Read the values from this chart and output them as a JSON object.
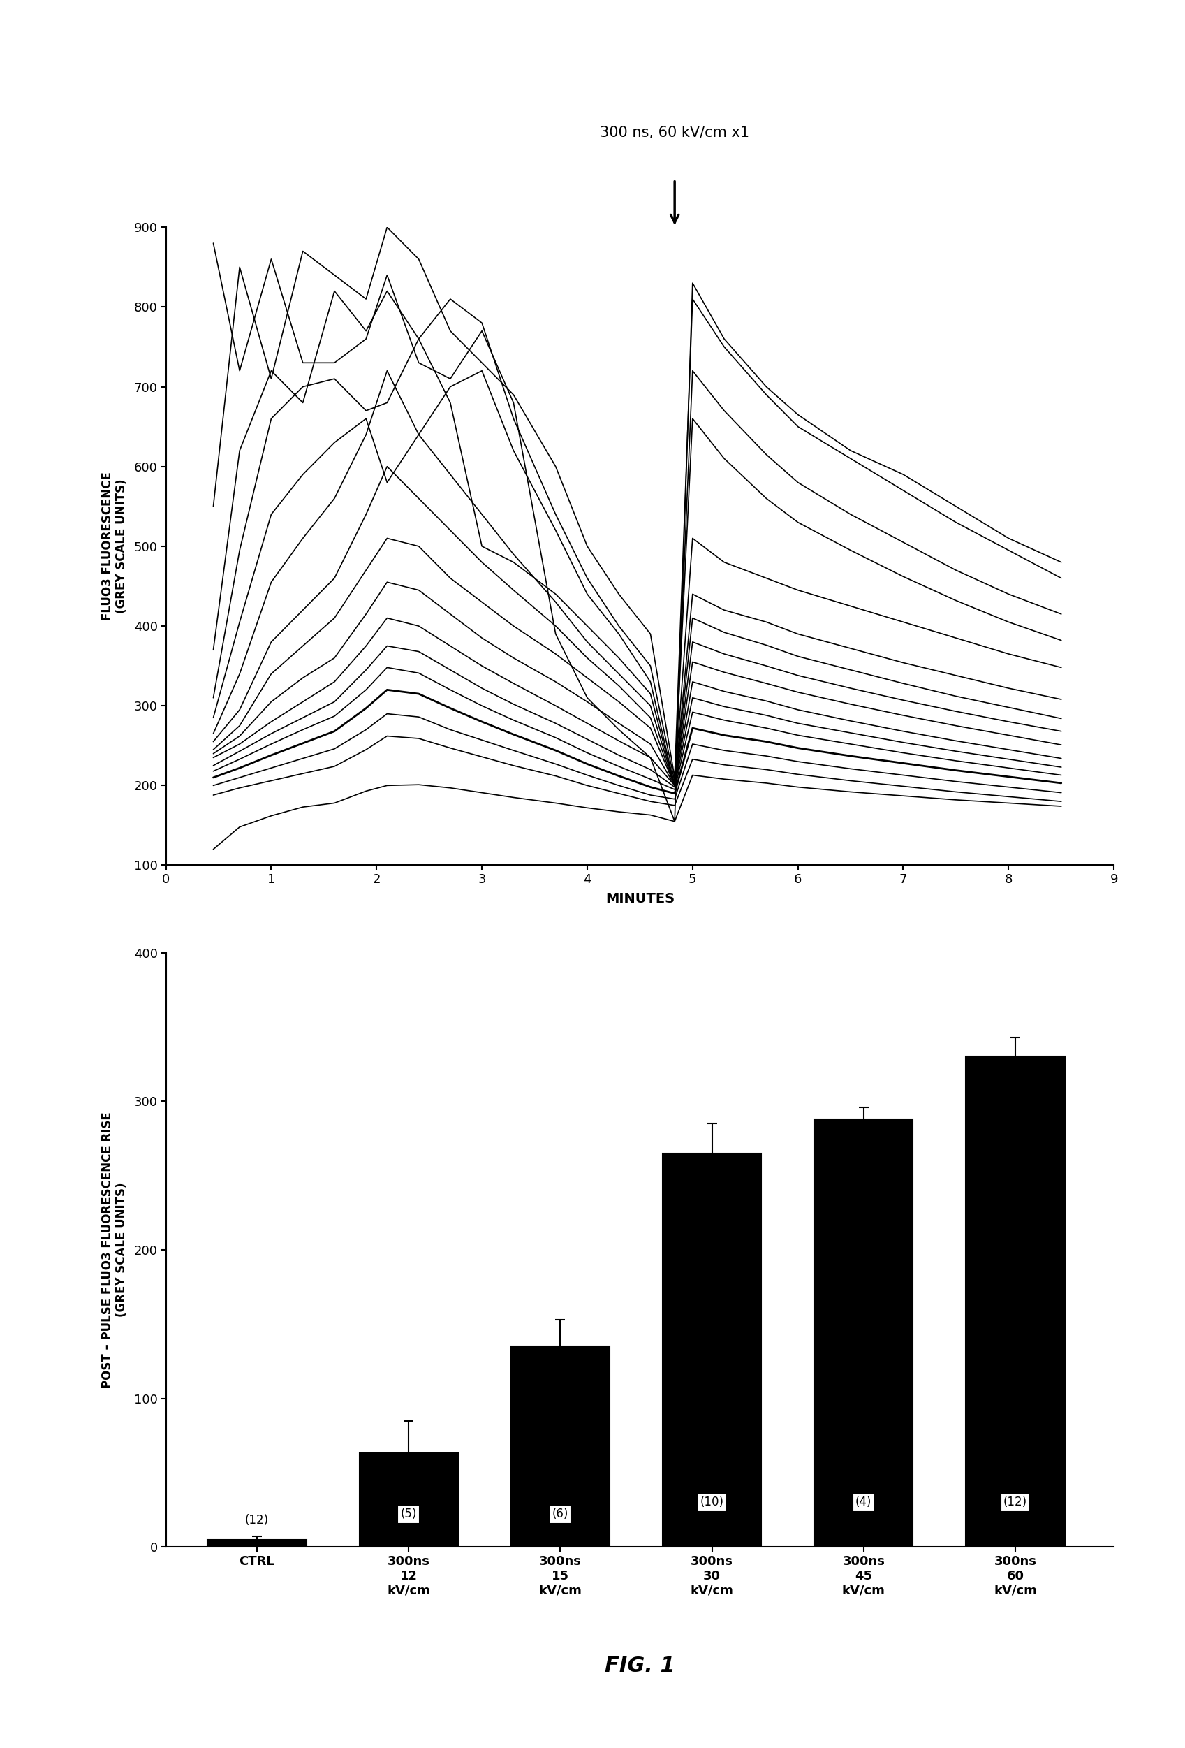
{
  "top_panel": {
    "title": "300 ns, 60 kV/cm x1",
    "xlabel": "MINUTES",
    "ylabel": "FLUO3 FLUORESCENCE\n(GREY SCALE UNITS)",
    "xlim": [
      0,
      9
    ],
    "ylim": [
      100,
      900
    ],
    "yticks": [
      100,
      200,
      300,
      400,
      500,
      600,
      700,
      800,
      900
    ],
    "xticks": [
      0,
      1,
      2,
      3,
      4,
      5,
      6,
      7,
      8,
      9
    ],
    "pulse_time": 4.83,
    "lines": [
      {
        "x": [
          0.45,
          0.7,
          1.0,
          1.3,
          1.6,
          1.9,
          2.1,
          2.4,
          2.7,
          3.0,
          3.3,
          3.7,
          4.0,
          4.3,
          4.6,
          4.83,
          5.0,
          5.3,
          5.7,
          6.0,
          6.5,
          7.0,
          7.5,
          8.0,
          8.5
        ],
        "y": [
          880,
          720,
          860,
          730,
          730,
          760,
          840,
          730,
          710,
          770,
          680,
          390,
          310,
          270,
          235,
          155,
          830,
          760,
          700,
          665,
          620,
          590,
          550,
          510,
          480
        ],
        "lw": 1.2
      },
      {
        "x": [
          0.45,
          0.7,
          1.0,
          1.3,
          1.6,
          1.9,
          2.1,
          2.4,
          2.7,
          3.0,
          3.3,
          3.7,
          4.0,
          4.3,
          4.6,
          4.83,
          5.0,
          5.3,
          5.7,
          6.0,
          6.5,
          7.0,
          7.5,
          8.0,
          8.5
        ],
        "y": [
          550,
          850,
          710,
          870,
          840,
          810,
          900,
          860,
          770,
          730,
          690,
          600,
          500,
          440,
          390,
          210,
          810,
          750,
          690,
          650,
          610,
          570,
          530,
          495,
          460
        ],
        "lw": 1.2
      },
      {
        "x": [
          0.45,
          0.7,
          1.0,
          1.3,
          1.6,
          1.9,
          2.1,
          2.4,
          2.7,
          3.0,
          3.3,
          3.7,
          4.0,
          4.3,
          4.6,
          4.83,
          5.0,
          5.3,
          5.7,
          6.0,
          6.5,
          7.0,
          7.5,
          8.0,
          8.5
        ],
        "y": [
          370,
          620,
          720,
          680,
          820,
          770,
          820,
          760,
          680,
          500,
          480,
          440,
          400,
          360,
          315,
          200,
          720,
          670,
          615,
          580,
          540,
          505,
          470,
          440,
          415
        ],
        "lw": 1.2
      },
      {
        "x": [
          0.45,
          0.7,
          1.0,
          1.3,
          1.6,
          1.9,
          2.1,
          2.4,
          2.7,
          3.0,
          3.3,
          3.7,
          4.0,
          4.3,
          4.6,
          4.83,
          5.0,
          5.3,
          5.7,
          6.0,
          6.5,
          7.0,
          7.5,
          8.0,
          8.5
        ],
        "y": [
          310,
          495,
          660,
          700,
          710,
          670,
          680,
          760,
          810,
          780,
          660,
          540,
          460,
          400,
          350,
          205,
          660,
          610,
          560,
          530,
          495,
          462,
          432,
          405,
          382
        ],
        "lw": 1.2
      },
      {
        "x": [
          0.45,
          0.7,
          1.0,
          1.3,
          1.6,
          1.9,
          2.1,
          2.4,
          2.7,
          3.0,
          3.3,
          3.7,
          4.0,
          4.3,
          4.6,
          4.83,
          5.0,
          5.3,
          5.7,
          6.0,
          6.5,
          7.0,
          7.5,
          8.0,
          8.5
        ],
        "y": [
          285,
          405,
          540,
          590,
          630,
          660,
          580,
          640,
          700,
          720,
          620,
          520,
          440,
          390,
          330,
          200,
          510,
          480,
          460,
          445,
          425,
          405,
          385,
          365,
          348
        ],
        "lw": 1.2
      },
      {
        "x": [
          0.45,
          0.7,
          1.0,
          1.3,
          1.6,
          1.9,
          2.1,
          2.4,
          2.7,
          3.0,
          3.3,
          3.7,
          4.0,
          4.3,
          4.6,
          4.83,
          5.0,
          5.3,
          5.7,
          6.0,
          6.5,
          7.0,
          7.5,
          8.0,
          8.5
        ],
        "y": [
          265,
          340,
          455,
          510,
          560,
          640,
          720,
          640,
          590,
          540,
          490,
          430,
          380,
          340,
          300,
          200,
          440,
          420,
          405,
          390,
          372,
          354,
          338,
          322,
          308
        ],
        "lw": 1.2
      },
      {
        "x": [
          0.45,
          0.7,
          1.0,
          1.3,
          1.6,
          1.9,
          2.1,
          2.4,
          2.7,
          3.0,
          3.3,
          3.7,
          4.0,
          4.3,
          4.6,
          4.83,
          5.0,
          5.3,
          5.7,
          6.0,
          6.5,
          7.0,
          7.5,
          8.0,
          8.5
        ],
        "y": [
          255,
          295,
          380,
          420,
          460,
          540,
          600,
          560,
          520,
          480,
          445,
          400,
          360,
          325,
          285,
          200,
          410,
          392,
          376,
          362,
          345,
          328,
          312,
          298,
          284
        ],
        "lw": 1.2
      },
      {
        "x": [
          0.45,
          0.7,
          1.0,
          1.3,
          1.6,
          1.9,
          2.1,
          2.4,
          2.7,
          3.0,
          3.3,
          3.7,
          4.0,
          4.3,
          4.6,
          4.83,
          5.0,
          5.3,
          5.7,
          6.0,
          6.5,
          7.0,
          7.5,
          8.0,
          8.5
        ],
        "y": [
          245,
          275,
          340,
          375,
          410,
          470,
          510,
          500,
          460,
          430,
          400,
          365,
          335,
          305,
          272,
          200,
          380,
          365,
          350,
          338,
          322,
          307,
          293,
          280,
          268
        ],
        "lw": 1.2
      },
      {
        "x": [
          0.45,
          0.7,
          1.0,
          1.3,
          1.6,
          1.9,
          2.1,
          2.4,
          2.7,
          3.0,
          3.3,
          3.7,
          4.0,
          4.3,
          4.6,
          4.83,
          5.0,
          5.3,
          5.7,
          6.0,
          6.5,
          7.0,
          7.5,
          8.0,
          8.5
        ],
        "y": [
          240,
          262,
          305,
          335,
          360,
          415,
          455,
          445,
          415,
          385,
          360,
          330,
          305,
          278,
          252,
          200,
          355,
          342,
          328,
          317,
          302,
          288,
          275,
          263,
          251
        ],
        "lw": 1.2
      },
      {
        "x": [
          0.45,
          0.7,
          1.0,
          1.3,
          1.6,
          1.9,
          2.1,
          2.4,
          2.7,
          3.0,
          3.3,
          3.7,
          4.0,
          4.3,
          4.6,
          4.83,
          5.0,
          5.3,
          5.7,
          6.0,
          6.5,
          7.0,
          7.5,
          8.0,
          8.5
        ],
        "y": [
          235,
          252,
          280,
          305,
          330,
          375,
          410,
          400,
          375,
          350,
          328,
          300,
          278,
          256,
          235,
          200,
          330,
          318,
          306,
          295,
          281,
          268,
          256,
          245,
          234
        ],
        "lw": 1.2
      },
      {
        "x": [
          0.45,
          0.7,
          1.0,
          1.3,
          1.6,
          1.9,
          2.1,
          2.4,
          2.7,
          3.0,
          3.3,
          3.7,
          4.0,
          4.3,
          4.6,
          4.83,
          5.0,
          5.3,
          5.7,
          6.0,
          6.5,
          7.0,
          7.5,
          8.0,
          8.5
        ],
        "y": [
          225,
          243,
          265,
          285,
          305,
          345,
          375,
          368,
          345,
          322,
          302,
          278,
          258,
          238,
          220,
          198,
          310,
          299,
          288,
          278,
          266,
          254,
          243,
          233,
          223
        ],
        "lw": 1.2
      },
      {
        "x": [
          0.45,
          0.7,
          1.0,
          1.3,
          1.6,
          1.9,
          2.1,
          2.4,
          2.7,
          3.0,
          3.3,
          3.7,
          4.0,
          4.3,
          4.6,
          4.83,
          5.0,
          5.3,
          5.7,
          6.0,
          6.5,
          7.0,
          7.5,
          8.0,
          8.5
        ],
        "y": [
          218,
          233,
          252,
          270,
          287,
          320,
          348,
          341,
          320,
          300,
          282,
          260,
          241,
          224,
          208,
          195,
          292,
          282,
          272,
          263,
          252,
          241,
          231,
          222,
          213
        ],
        "lw": 1.2
      },
      {
        "x": [
          0.45,
          0.7,
          1.0,
          1.3,
          1.6,
          1.9,
          2.1,
          2.4,
          2.7,
          3.0,
          3.3,
          3.7,
          4.0,
          4.3,
          4.6,
          4.83,
          5.0,
          5.3,
          5.7,
          6.0,
          6.5,
          7.0,
          7.5,
          8.0,
          8.5
        ],
        "y": [
          210,
          222,
          238,
          253,
          268,
          297,
          320,
          315,
          297,
          280,
          264,
          244,
          227,
          212,
          198,
          190,
          272,
          263,
          255,
          247,
          237,
          228,
          219,
          211,
          203
        ],
        "lw": 2.0
      },
      {
        "x": [
          0.45,
          0.7,
          1.0,
          1.3,
          1.6,
          1.9,
          2.1,
          2.4,
          2.7,
          3.0,
          3.3,
          3.7,
          4.0,
          4.3,
          4.6,
          4.83,
          5.0,
          5.3,
          5.7,
          6.0,
          6.5,
          7.0,
          7.5,
          8.0,
          8.5
        ],
        "y": [
          200,
          210,
          222,
          234,
          246,
          270,
          290,
          286,
          270,
          257,
          244,
          227,
          213,
          200,
          188,
          183,
          252,
          244,
          237,
          230,
          221,
          213,
          205,
          198,
          191
        ],
        "lw": 1.2
      },
      {
        "x": [
          0.45,
          0.7,
          1.0,
          1.3,
          1.6,
          1.9,
          2.1,
          2.4,
          2.7,
          3.0,
          3.3,
          3.7,
          4.0,
          4.3,
          4.6,
          4.83,
          5.0,
          5.3,
          5.7,
          6.0,
          6.5,
          7.0,
          7.5,
          8.0,
          8.5
        ],
        "y": [
          188,
          197,
          206,
          215,
          224,
          245,
          262,
          259,
          247,
          236,
          225,
          212,
          200,
          190,
          180,
          175,
          233,
          226,
          220,
          214,
          206,
          199,
          192,
          186,
          180
        ],
        "lw": 1.2
      },
      {
        "x": [
          0.45,
          0.7,
          1.0,
          1.3,
          1.6,
          1.9,
          2.1,
          2.4,
          2.7,
          3.0,
          3.3,
          3.7,
          4.0,
          4.3,
          4.6,
          4.83,
          5.0,
          5.3,
          5.7,
          6.0,
          6.5,
          7.0,
          7.5,
          8.0,
          8.5
        ],
        "y": [
          120,
          148,
          162,
          173,
          178,
          193,
          200,
          201,
          197,
          191,
          185,
          178,
          172,
          167,
          163,
          155,
          213,
          208,
          203,
          198,
          192,
          187,
          182,
          178,
          174
        ],
        "lw": 1.2
      }
    ]
  },
  "bottom_panel": {
    "ylabel": "POST – PULSE FLUO3 FLUORESCENCE RISE\n(GREY SCALE UNITS)",
    "ylim": [
      0,
      400
    ],
    "yticks": [
      0,
      100,
      200,
      300,
      400
    ],
    "categories": [
      "CTRL",
      "300ns\n12\nkV/cm",
      "300ns\n15\nkV/cm",
      "300ns\n30\nkV/cm",
      "300ns\n45\nkV/cm",
      "300ns\n60\nkV/cm"
    ],
    "values": [
      5,
      63,
      135,
      265,
      288,
      330
    ],
    "errors": [
      2,
      22,
      18,
      20,
      8,
      13
    ],
    "n_labels": [
      "(12)",
      "(5)",
      "(6)",
      "(10)",
      "(4)",
      "(12)"
    ],
    "bar_color": "#000000",
    "bar_edgecolor": "#000000"
  },
  "fig_label": "FIG. 1",
  "background_color": "#ffffff"
}
